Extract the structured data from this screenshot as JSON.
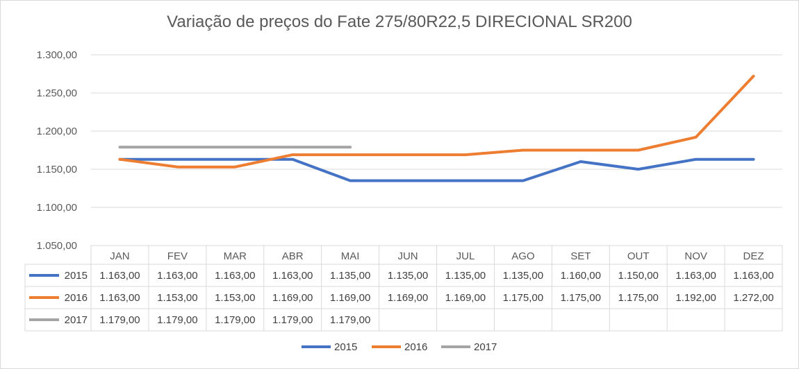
{
  "chart_data": {
    "type": "line",
    "title": "Variação de preços do Fate 275/80R22,5 DIRECIONAL SR200",
    "categories": [
      "JAN",
      "FEV",
      "MAR",
      "ABR",
      "MAI",
      "JUN",
      "JUL",
      "AGO",
      "SET",
      "OUT",
      "NOV",
      "DEZ"
    ],
    "ylim": [
      1050,
      1300
    ],
    "yticks": [
      1050,
      1100,
      1150,
      1200,
      1250,
      1300
    ],
    "ytick_labels": [
      "1.050,00",
      "1.100,00",
      "1.150,00",
      "1.200,00",
      "1.250,00",
      "1.300,00"
    ],
    "grid": true,
    "legend_position": "bottom",
    "data_table": true,
    "series": [
      {
        "name": "2015",
        "color": "#4472c4",
        "values": [
          1163,
          1163,
          1163,
          1163,
          1135,
          1135,
          1135,
          1135,
          1160,
          1150,
          1163,
          1163
        ],
        "labels": [
          "1.163,00",
          "1.163,00",
          "1.163,00",
          "1.163,00",
          "1.135,00",
          "1.135,00",
          "1.135,00",
          "1.135,00",
          "1.160,00",
          "1.150,00",
          "1.163,00",
          "1.163,00"
        ]
      },
      {
        "name": "2016",
        "color": "#ed7d31",
        "values": [
          1163,
          1153,
          1153,
          1169,
          1169,
          1169,
          1169,
          1175,
          1175,
          1175,
          1192,
          1272
        ],
        "labels": [
          "1.163,00",
          "1.153,00",
          "1.153,00",
          "1.169,00",
          "1.169,00",
          "1.169,00",
          "1.169,00",
          "1.175,00",
          "1.175,00",
          "1.175,00",
          "1.192,00",
          "1.272,00"
        ]
      },
      {
        "name": "2017",
        "color": "#a5a5a5",
        "values": [
          1179,
          1179,
          1179,
          1179,
          1179,
          null,
          null,
          null,
          null,
          null,
          null,
          null
        ],
        "labels": [
          "1.179,00",
          "1.179,00",
          "1.179,00",
          "1.179,00",
          "1.179,00",
          "",
          "",
          "",
          "",
          "",
          "",
          ""
        ]
      }
    ]
  }
}
